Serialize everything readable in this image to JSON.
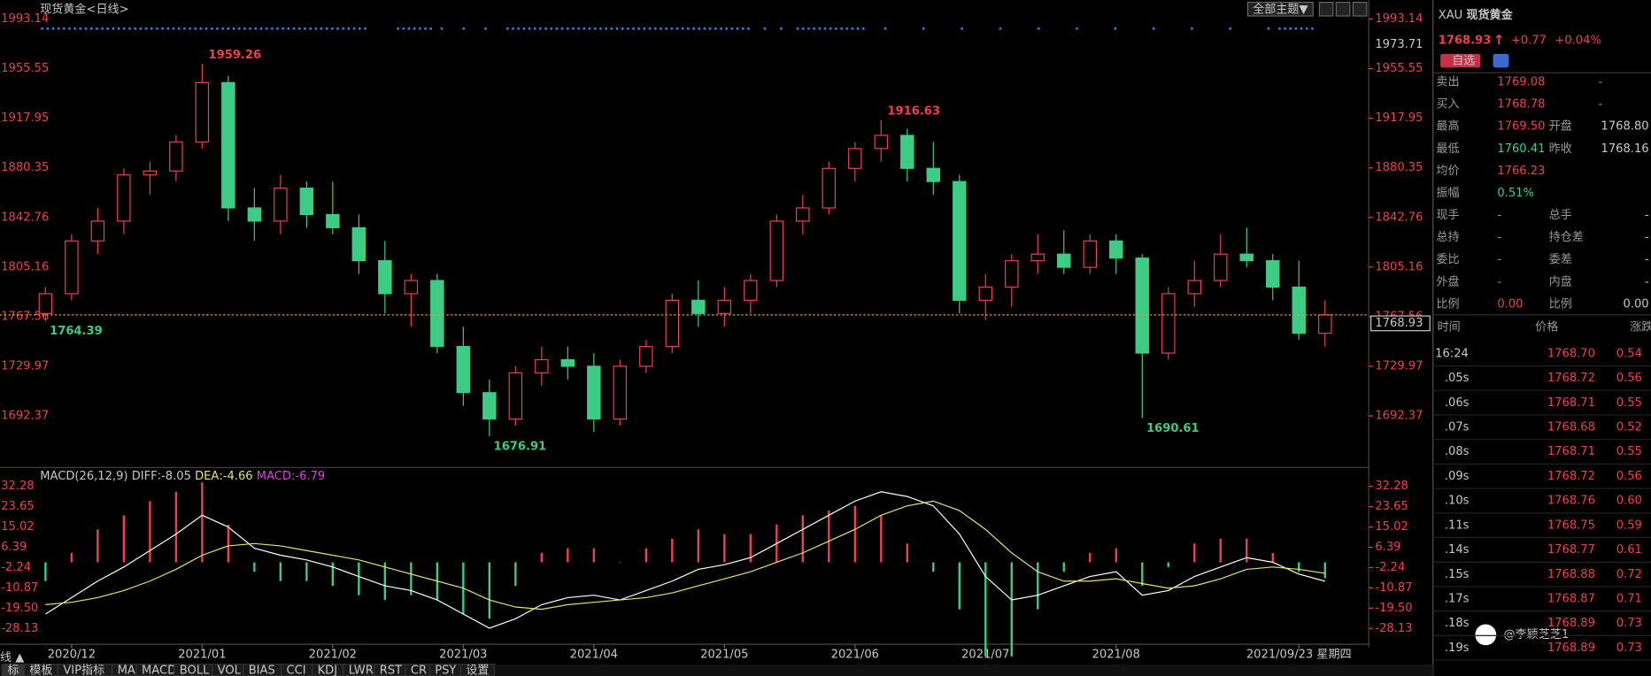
{
  "title": "现货黄金<日线>",
  "theme_button": "全部主题▼",
  "chart_data": [
    {
      "type": "candlestick",
      "up_color": "#f0404c",
      "down_color": "#3dcc84",
      "categories": [
        null,
        "2020/12",
        null,
        null,
        null,
        null,
        "2021/01",
        null,
        null,
        null,
        null,
        "2021/02",
        null,
        null,
        null,
        null,
        "2021/03",
        null,
        null,
        null,
        null,
        "2021/04",
        null,
        null,
        null,
        null,
        "2021/05",
        null,
        null,
        null,
        null,
        "2021/06",
        null,
        null,
        null,
        null,
        "2021/07",
        null,
        null,
        null,
        null,
        "2021/08",
        null,
        null,
        null,
        null,
        null,
        null,
        "2021/09/23 星期四",
        null
      ],
      "candles": [
        [
          1770,
          1790,
          1764.39,
          1785
        ],
        [
          1785,
          1830,
          1780,
          1825
        ],
        [
          1825,
          1850,
          1815,
          1840
        ],
        [
          1840,
          1880,
          1830,
          1875
        ],
        [
          1875,
          1885,
          1860,
          1878
        ],
        [
          1878,
          1905,
          1870,
          1900
        ],
        [
          1900,
          1959.26,
          1895,
          1945
        ],
        [
          1945,
          1950,
          1840,
          1850
        ],
        [
          1850,
          1865,
          1825,
          1840
        ],
        [
          1840,
          1875,
          1830,
          1865
        ],
        [
          1865,
          1870,
          1835,
          1845
        ],
        [
          1845,
          1870,
          1830,
          1835
        ],
        [
          1835,
          1845,
          1800,
          1810
        ],
        [
          1810,
          1825,
          1770,
          1785
        ],
        [
          1785,
          1800,
          1760,
          1795
        ],
        [
          1795,
          1800,
          1740,
          1745
        ],
        [
          1745,
          1760,
          1700,
          1710
        ],
        [
          1710,
          1720,
          1676.91,
          1690
        ],
        [
          1690,
          1730,
          1685,
          1725
        ],
        [
          1725,
          1745,
          1715,
          1735
        ],
        [
          1735,
          1745,
          1720,
          1730
        ],
        [
          1730,
          1740,
          1680,
          1690
        ],
        [
          1690,
          1735,
          1685,
          1730
        ],
        [
          1730,
          1750,
          1725,
          1745
        ],
        [
          1745,
          1785,
          1740,
          1780
        ],
        [
          1780,
          1795,
          1760,
          1770
        ],
        [
          1770,
          1790,
          1760,
          1780
        ],
        [
          1780,
          1800,
          1770,
          1795
        ],
        [
          1795,
          1845,
          1790,
          1840
        ],
        [
          1840,
          1860,
          1830,
          1850
        ],
        [
          1850,
          1885,
          1845,
          1880
        ],
        [
          1880,
          1900,
          1870,
          1895
        ],
        [
          1895,
          1916.63,
          1885,
          1905
        ],
        [
          1905,
          1910,
          1870,
          1880
        ],
        [
          1880,
          1900,
          1860,
          1870
        ],
        [
          1870,
          1875,
          1770,
          1780
        ],
        [
          1780,
          1800,
          1765,
          1790
        ],
        [
          1790,
          1815,
          1775,
          1810
        ],
        [
          1810,
          1830,
          1800,
          1815
        ],
        [
          1815,
          1833,
          1800,
          1805
        ],
        [
          1805,
          1830,
          1800,
          1825
        ],
        [
          1825,
          1830,
          1800,
          1812
        ],
        [
          1812,
          1815,
          1690.61,
          1740
        ],
        [
          1740,
          1790,
          1735,
          1785
        ],
        [
          1785,
          1810,
          1775,
          1795
        ],
        [
          1795,
          1830,
          1790,
          1815
        ],
        [
          1815,
          1835,
          1805,
          1810
        ],
        [
          1810,
          1815,
          1780,
          1790
        ],
        [
          1790,
          1810,
          1750,
          1755
        ],
        [
          1755,
          1780,
          1745,
          1768.93
        ]
      ],
      "high_labels": [
        6,
        32
      ],
      "low_labels": [
        0,
        17,
        42
      ],
      "ylim": [
        1656.5,
        1995.5
      ],
      "yticks": [
        1993.14,
        1955.55,
        1917.95,
        1880.35,
        1842.76,
        1805.16,
        1767.56,
        1729.97,
        1692.37
      ],
      "axis_marker": 1973.71,
      "grid": false
    },
    {
      "type": "macd",
      "title": "MACD(26,12,9)",
      "series": [
        {
          "name": "DIFF",
          "color": "#ffffff",
          "values": [
            -22,
            -15,
            -8,
            -2,
            5,
            12,
            20,
            15,
            6,
            3,
            1,
            -2,
            -6,
            -10,
            -12,
            -16,
            -22,
            -28,
            -24,
            -18,
            -15,
            -14,
            -16,
            -12,
            -8,
            -3,
            -1,
            2,
            8,
            14,
            20,
            26,
            30,
            28,
            24,
            12,
            -6,
            -16,
            -14,
            -10,
            -6,
            -4,
            -14,
            -12,
            -6,
            -2,
            2,
            0,
            -5,
            -8.05
          ]
        },
        {
          "name": "DEA",
          "color": "#e8e070",
          "values": [
            -18,
            -17,
            -15,
            -12,
            -8,
            -3,
            3,
            7,
            8,
            7,
            5,
            3,
            1,
            -2,
            -5,
            -8,
            -11,
            -16,
            -19,
            -20,
            -18,
            -17,
            -16,
            -15,
            -13,
            -10,
            -7,
            -4,
            0,
            4,
            9,
            14,
            20,
            24,
            26,
            22,
            14,
            4,
            -4,
            -8,
            -8,
            -7,
            -9,
            -11,
            -10,
            -7,
            -3,
            -2,
            -3,
            -4.66
          ]
        },
        {
          "name": "MACD",
          "color": "#e040e0",
          "values": [
            -8,
            4,
            14,
            20,
            26,
            30,
            34,
            16,
            -4,
            -8,
            -8,
            -10,
            -14,
            -16,
            -14,
            -16,
            -22,
            -24,
            -10,
            4,
            6,
            6,
            0,
            6,
            10,
            14,
            12,
            12,
            16,
            20,
            22,
            24,
            20,
            8,
            -4,
            -20,
            -40,
            -40,
            -20,
            -4,
            4,
            6,
            -10,
            -2,
            8,
            10,
            10,
            4,
            -4,
            -6.79
          ]
        }
      ],
      "ylim": [
        -36.18,
        37.65
      ],
      "yticks": [
        32.28,
        23.65,
        15.02,
        6.39,
        -2.24,
        -10.87,
        {
          "value": -19.5,
          "label": "-19.50"
        },
        -28.13
      ]
    }
  ],
  "panel": {
    "symbol": "XAU",
    "name": "现货黄金",
    "price": "1768.93",
    "arrow": "↑",
    "change": "+0.77",
    "pct": "+0.04%",
    "tag": "自选",
    "rows": [
      [
        "卖出",
        "1769.08",
        "-",
        null
      ],
      [
        "买入",
        "1768.78",
        "-",
        null
      ],
      [
        "最高",
        "1769.50",
        "开盘",
        "1768.80"
      ],
      [
        "最低",
        "1760.41",
        "昨收",
        "1768.16"
      ],
      [
        "均价",
        "1766.23",
        null,
        null
      ],
      [
        "振幅",
        "0.51%",
        null,
        null
      ],
      [
        "现手",
        "-",
        "总手",
        "-"
      ],
      [
        "总持",
        "-",
        "持仓差",
        "-"
      ],
      [
        "委比",
        "-",
        "委差",
        "-"
      ],
      [
        "外盘",
        "-",
        "内盘",
        "-"
      ],
      [
        "比例",
        "0.00",
        "比例",
        "0.00"
      ]
    ],
    "trades_header": [
      "时间",
      "价格",
      "涨跌"
    ],
    "trades": [
      [
        "16:24",
        "1768.70",
        "0.54"
      ],
      [
        ".05s",
        "1768.72",
        "0.56"
      ],
      [
        ".06s",
        "1768.71",
        "0.55"
      ],
      [
        ".07s",
        "1768.68",
        "0.52"
      ],
      [
        ".08s",
        "1768.71",
        "0.55"
      ],
      [
        ".09s",
        "1768.72",
        "0.56"
      ],
      [
        ".10s",
        "1768.76",
        "0.60"
      ],
      [
        ".11s",
        "1768.75",
        "0.59"
      ],
      [
        ".14s",
        "1768.77",
        "0.61"
      ],
      [
        ".15s",
        "1768.88",
        "0.72"
      ],
      [
        ".17s",
        "1768.87",
        "0.71"
      ],
      [
        ".18s",
        "1768.89",
        "0.73"
      ],
      [
        ".19s",
        "1768.89",
        "0.73"
      ]
    ]
  },
  "watermark": "@李颖芝芝1",
  "footer": {
    "toggle": "线 ▲",
    "tabs": [
      "标",
      "模板",
      "VIP指标",
      "MA",
      "MACD",
      "BOLL",
      "VOL",
      "BIAS",
      "CCI",
      "KDJ",
      "LWR",
      "RST",
      "CR",
      "PSY",
      "设置"
    ]
  }
}
